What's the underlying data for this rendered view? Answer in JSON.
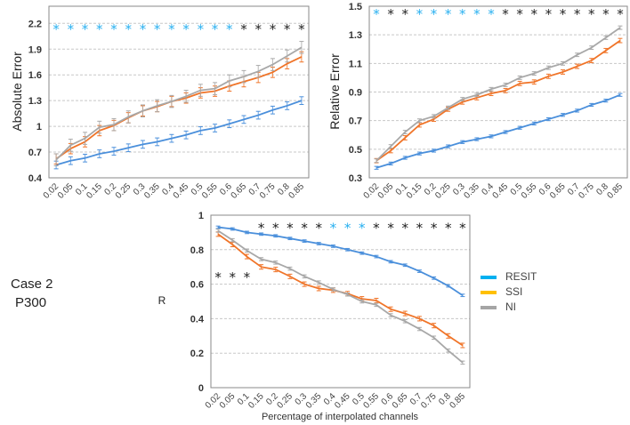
{
  "x_categories": [
    "0.02",
    "0.05",
    "0.1",
    "0.15",
    "0.2",
    "0.25",
    "0.3",
    "0.35",
    "0.4",
    "0.45",
    "0.5",
    "0.55",
    "0.6",
    "0.65",
    "0.7",
    "0.75",
    "0.8",
    "0.85"
  ],
  "colors": {
    "RESIT": "#4a8fdb",
    "SSI": "#f07428",
    "NI": "#a8a8a8",
    "star_blue": "#29b0f0",
    "star_black": "#222222",
    "legend_RESIT": "#00b0f0",
    "legend_SSI": "#ffc000",
    "legend_NI": "#a5a5a5"
  },
  "panel_label": {
    "case": "Case 2",
    "dataset": "P300"
  },
  "legend": {
    "items": [
      "RESIT",
      "SSI",
      "NI"
    ],
    "placement": "right"
  },
  "chart_data": [
    {
      "type": "line",
      "title": "",
      "ylabel": "Absolute Error",
      "xlabel": "",
      "ylim": [
        0.4,
        2.4
      ],
      "yticks": [
        0.4,
        0.7,
        1,
        1.3,
        1.6,
        1.9,
        2.2
      ],
      "ytick_labels": [
        "0.4",
        "0.7",
        "1",
        "1.3",
        "1.6",
        "1.9",
        "2.2"
      ],
      "grid": true,
      "series": [
        {
          "name": "RESIT",
          "err": 0.045,
          "values": [
            0.55,
            0.6,
            0.63,
            0.68,
            0.71,
            0.75,
            0.79,
            0.82,
            0.86,
            0.9,
            0.95,
            0.98,
            1.03,
            1.08,
            1.13,
            1.19,
            1.24,
            1.3
          ]
        },
        {
          "name": "SSI",
          "err": 0.06,
          "values": [
            0.62,
            0.74,
            0.82,
            0.95,
            1.01,
            1.1,
            1.18,
            1.23,
            1.29,
            1.33,
            1.39,
            1.41,
            1.47,
            1.52,
            1.57,
            1.63,
            1.73,
            1.81
          ]
        },
        {
          "name": "NI",
          "err": 0.07,
          "values": [
            0.61,
            0.78,
            0.86,
            0.99,
            1.02,
            1.11,
            1.18,
            1.24,
            1.29,
            1.35,
            1.42,
            1.44,
            1.53,
            1.58,
            1.64,
            1.72,
            1.82,
            1.92
          ]
        }
      ],
      "significance": [
        {
          "y": 2.14,
          "colors": [
            "blue",
            "blue",
            "blue",
            "blue",
            "blue",
            "blue",
            "blue",
            "blue",
            "blue",
            "blue",
            "blue",
            "blue",
            "blue",
            "black",
            "black",
            "black",
            "black",
            "black"
          ]
        }
      ]
    },
    {
      "type": "line",
      "title": "",
      "ylabel": "Relative Error",
      "xlabel": "",
      "ylim": [
        0.3,
        1.5
      ],
      "yticks": [
        0.3,
        0.5,
        0.7,
        0.9,
        1.1,
        1.3,
        1.5
      ],
      "ytick_labels": [
        "0.3",
        "0.5",
        "0.7",
        "0.9",
        "1.1",
        "1.3",
        "1.5"
      ],
      "grid": true,
      "series": [
        {
          "name": "RESIT",
          "err": 0.01,
          "values": [
            0.37,
            0.4,
            0.44,
            0.47,
            0.49,
            0.52,
            0.55,
            0.57,
            0.59,
            0.62,
            0.65,
            0.68,
            0.71,
            0.74,
            0.77,
            0.81,
            0.84,
            0.88
          ]
        },
        {
          "name": "SSI",
          "err": 0.015,
          "values": [
            0.42,
            0.49,
            0.58,
            0.67,
            0.71,
            0.78,
            0.83,
            0.86,
            0.89,
            0.91,
            0.96,
            0.97,
            1.01,
            1.04,
            1.08,
            1.12,
            1.19,
            1.26
          ]
        },
        {
          "name": "NI",
          "err": 0.012,
          "values": [
            0.42,
            0.52,
            0.62,
            0.7,
            0.73,
            0.79,
            0.85,
            0.88,
            0.92,
            0.95,
            1.0,
            1.03,
            1.07,
            1.1,
            1.16,
            1.21,
            1.28,
            1.35
          ]
        }
      ],
      "significance": [
        {
          "y": 1.45,
          "colors": [
            "blue",
            "black",
            "black",
            "blue",
            "blue",
            "blue",
            "blue",
            "blue",
            "blue",
            "black",
            "black",
            "black",
            "black",
            "black",
            "black",
            "black",
            "black",
            "black"
          ]
        }
      ]
    },
    {
      "type": "line",
      "title": "",
      "ylabel": "R",
      "xlabel": "Percentage of interpolated channels",
      "ylim": [
        0,
        1
      ],
      "yticks": [
        0,
        0.2,
        0.4,
        0.6,
        0.8,
        1
      ],
      "ytick_labels": [
        "0",
        "0.2",
        "0.4",
        "0.6",
        "0.8",
        "1"
      ],
      "grid": true,
      "series": [
        {
          "name": "RESIT",
          "err": 0.007,
          "values": [
            0.93,
            0.92,
            0.9,
            0.89,
            0.88,
            0.865,
            0.85,
            0.835,
            0.82,
            0.8,
            0.78,
            0.76,
            0.73,
            0.71,
            0.675,
            0.635,
            0.59,
            0.535
          ]
        },
        {
          "name": "SSI",
          "err": 0.013,
          "values": [
            0.89,
            0.83,
            0.76,
            0.7,
            0.685,
            0.645,
            0.6,
            0.575,
            0.565,
            0.545,
            0.515,
            0.505,
            0.455,
            0.43,
            0.4,
            0.36,
            0.3,
            0.245
          ]
        },
        {
          "name": "NI",
          "err": 0.009,
          "values": [
            0.91,
            0.855,
            0.795,
            0.745,
            0.725,
            0.69,
            0.645,
            0.61,
            0.57,
            0.54,
            0.5,
            0.48,
            0.42,
            0.385,
            0.34,
            0.29,
            0.215,
            0.145
          ]
        }
      ],
      "significance": [
        {
          "y": 0.93,
          "colors": [
            null,
            null,
            null,
            "black",
            "black",
            "black",
            "black",
            "black",
            "blue",
            "blue",
            "blue",
            "black",
            "black",
            "black",
            "black",
            "black",
            "black",
            "black"
          ]
        },
        {
          "y": 0.645,
          "colors": [
            "black",
            "black",
            "black",
            null,
            null,
            null,
            null,
            null,
            null,
            null,
            null,
            null,
            null,
            null,
            null,
            null,
            null,
            null
          ]
        }
      ]
    }
  ]
}
